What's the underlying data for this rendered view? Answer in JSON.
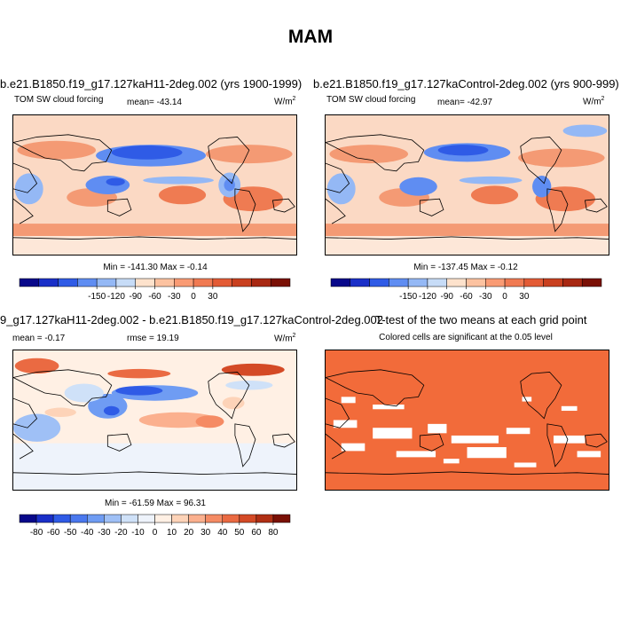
{
  "title": "MAM",
  "panels": [
    {
      "title": "b.e21.B1850.f19_g17.127kaH11-2deg.002 (yrs 1900-1999)",
      "left_label": "TOM SW cloud forcing",
      "center_label": "mean= -43.14",
      "units": "W/m",
      "units_sup": "2",
      "minmax": "Min = -141.30 Max =  -0.14",
      "colorbar_labels": [
        "-150",
        "-120",
        "-90",
        "-60",
        "-30",
        "0",
        "30"
      ],
      "colorbar_colors": [
        "#08088a",
        "#1a2fc8",
        "#2f5be6",
        "#5f8df2",
        "#94b8f5",
        "#c7dcf7",
        "#fde2cc",
        "#fcc2a0",
        "#f99b74",
        "#f07a52",
        "#e35b35",
        "#c9401f",
        "#a82812",
        "#7a1005"
      ]
    },
    {
      "title": "b.e21.B1850.f19_g17.127kaControl-2deg.002 (yrs 900-999)",
      "left_label": "TOM SW cloud forcing",
      "center_label": "mean= -42.97",
      "units": "W/m",
      "units_sup": "2",
      "minmax": "Min = -137.45 Max =  -0.12",
      "colorbar_labels": [
        "-150",
        "-120",
        "-90",
        "-60",
        "-30",
        "0",
        "30"
      ],
      "colorbar_colors": [
        "#08088a",
        "#1a2fc8",
        "#2f5be6",
        "#5f8df2",
        "#94b8f5",
        "#c7dcf7",
        "#fde2cc",
        "#fcc2a0",
        "#f99b74",
        "#f07a52",
        "#e35b35",
        "#c9401f",
        "#a82812",
        "#7a1005"
      ]
    },
    {
      "title": "9_g17.127kaH11-2deg.002 - b.e21.B1850.f19_g17.127kaControl-2deg.002",
      "left_label": "mean =  -0.17",
      "center_label": "rmse =  19.19",
      "units": "W/m",
      "units_sup": "2",
      "minmax": "Min = -61.59 Max =  96.31",
      "colorbar_labels": [
        "-80",
        "-60",
        "-50",
        "-40",
        "-30",
        "-20",
        "-10",
        "0",
        "10",
        "20",
        "30",
        "40",
        "50",
        "60",
        "80"
      ],
      "colorbar_colors": [
        "#08088a",
        "#1a2fc8",
        "#2f5be6",
        "#4a78ee",
        "#6f9cf3",
        "#9fc0f6",
        "#cfe1f8",
        "#eef3fb",
        "#fff0e4",
        "#fdd3b8",
        "#fbb08e",
        "#f58b64",
        "#ea6a42",
        "#d44a26",
        "#b02f14",
        "#7a1005"
      ]
    },
    {
      "title": "T-test of the two means at each grid point",
      "center_label": "Colored cells are significant at the 0.05 level"
    }
  ],
  "colors": {
    "ocean_default": "#fbd7c0",
    "significant": "#f26b3a",
    "coast": "#000000"
  }
}
